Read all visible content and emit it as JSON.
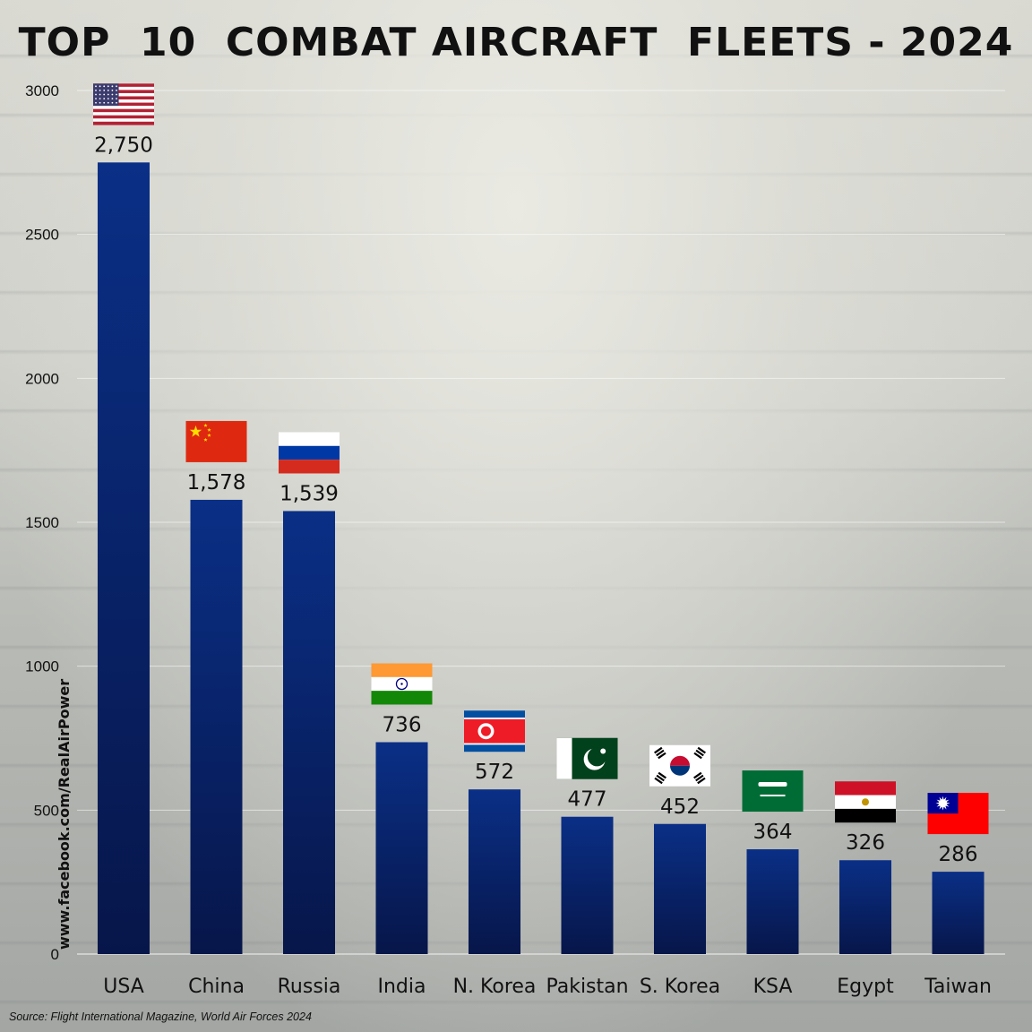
{
  "title": "TOP  10  COMBAT AIRCRAFT  FLEETS - 2024",
  "watermark": "www.facebook.com/RealAirPower",
  "source": "Source: Flight International Magazine, World Air Forces 2024",
  "colors": {
    "bar_top": "#0a2f86",
    "bar_bottom": "#07164a",
    "gridline": "#ffffff",
    "text": "#111111"
  },
  "chart_data": {
    "type": "bar",
    "title": "TOP  10  COMBAT AIRCRAFT  FLEETS - 2024",
    "xlabel": "",
    "ylabel": "",
    "ylim": [
      0,
      3000
    ],
    "yticks": [
      0,
      500,
      1000,
      1500,
      2000,
      2500,
      3000
    ],
    "grid": true,
    "categories": [
      "USA",
      "China",
      "Russia",
      "India",
      "N. Korea",
      "Pakistan",
      "S. Korea",
      "KSA",
      "Egypt",
      "Taiwan"
    ],
    "values": [
      2750,
      1578,
      1539,
      736,
      572,
      477,
      452,
      364,
      326,
      286
    ],
    "value_labels": [
      "2,750",
      "1,578",
      "1,539",
      "736",
      "572",
      "477",
      "452",
      "364",
      "326",
      "286"
    ],
    "flags": [
      "usa-flag",
      "china-flag",
      "russia-flag",
      "india-flag",
      "north-korea-flag",
      "pakistan-flag",
      "south-korea-flag",
      "saudi-arabia-flag",
      "egypt-flag",
      "taiwan-flag"
    ]
  }
}
